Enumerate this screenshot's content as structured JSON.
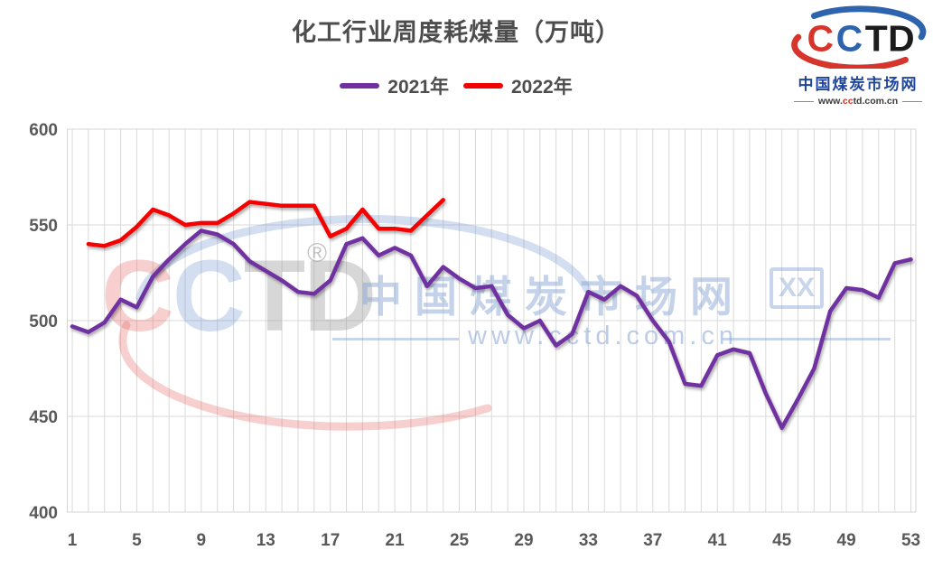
{
  "title": "化工行业周度耗煤量（万吨）",
  "legend": [
    {
      "label": "2021年",
      "color": "#7030A0"
    },
    {
      "label": "2022年",
      "color": "#F40000"
    }
  ],
  "logo": {
    "brand_letters": [
      {
        "ch": "C",
        "color": "#D6352B"
      },
      {
        "ch": "C",
        "color": "#2E63AE"
      },
      {
        "ch": "T",
        "color": "#1c1c1c"
      },
      {
        "ch": "D",
        "color": "#1c1c1c"
      }
    ],
    "name": "中国煤炭市场网",
    "url_prefix": "www.",
    "url_cc": "cc",
    "url_suffix": "td.com.cn"
  },
  "watermark": {
    "brand": {
      "l1": "C",
      "l2": "C",
      "l3": "T",
      "l4": "D"
    },
    "registered": "®",
    "name": "中国煤炭市场网",
    "mark": "XX",
    "url": "www.cctd.com.cn"
  },
  "chart_data": {
    "type": "line",
    "title": "化工行业周度耗煤量（万吨）",
    "x_unit": "week",
    "x_range": [
      1,
      53
    ],
    "x_ticks": [
      1,
      5,
      9,
      13,
      17,
      21,
      25,
      29,
      33,
      37,
      41,
      45,
      49,
      53
    ],
    "y_ticks": [
      600,
      550,
      500,
      450,
      400
    ],
    "ylim": [
      400,
      600
    ],
    "grid": true,
    "legend_position": "top",
    "series": [
      {
        "name": "2021年",
        "color": "#7030A0",
        "start_week": 1,
        "values": [
          497,
          494,
          499,
          511,
          507,
          523,
          532,
          540,
          547,
          545,
          540,
          531,
          526,
          521,
          515,
          514,
          521,
          540,
          543,
          534,
          538,
          534,
          518,
          528,
          522,
          517,
          518,
          503,
          496,
          500,
          487,
          493,
          515,
          511,
          518,
          513,
          500,
          489,
          467,
          466,
          482,
          485,
          483,
          462,
          444,
          459,
          475,
          505,
          517,
          516,
          512,
          530,
          532
        ]
      },
      {
        "name": "2022年",
        "color": "#F40000",
        "start_week": 2,
        "values": [
          540,
          539,
          542,
          549,
          558,
          555,
          550,
          551,
          551,
          556,
          562,
          561,
          560,
          560,
          560,
          544,
          548,
          558,
          548,
          548,
          547,
          555,
          563
        ]
      }
    ]
  }
}
